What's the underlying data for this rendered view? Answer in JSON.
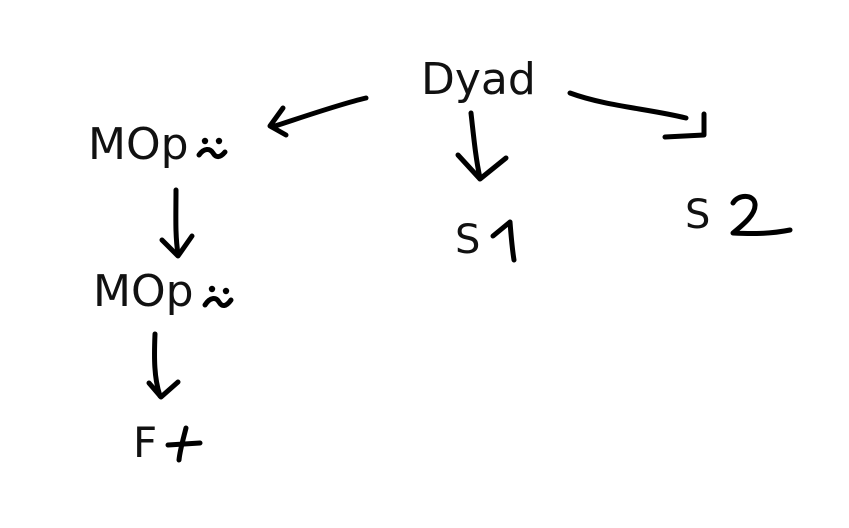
{
  "diagram": {
    "root": {
      "label": "Dyad"
    },
    "mop_outer": {
      "label": "MOp"
    },
    "mop_inner": {
      "label": "MOp"
    },
    "function_leaf": {
      "label": "F"
    },
    "scalar_left": {
      "label": "S"
    },
    "scalar_right": {
      "label": "S"
    },
    "handwritten_symbols": {
      "tilde_diaeresis": "⍨",
      "plus": "+",
      "one": "1",
      "two": "2"
    },
    "ink_color": "#000000",
    "text_color": "#111111"
  }
}
